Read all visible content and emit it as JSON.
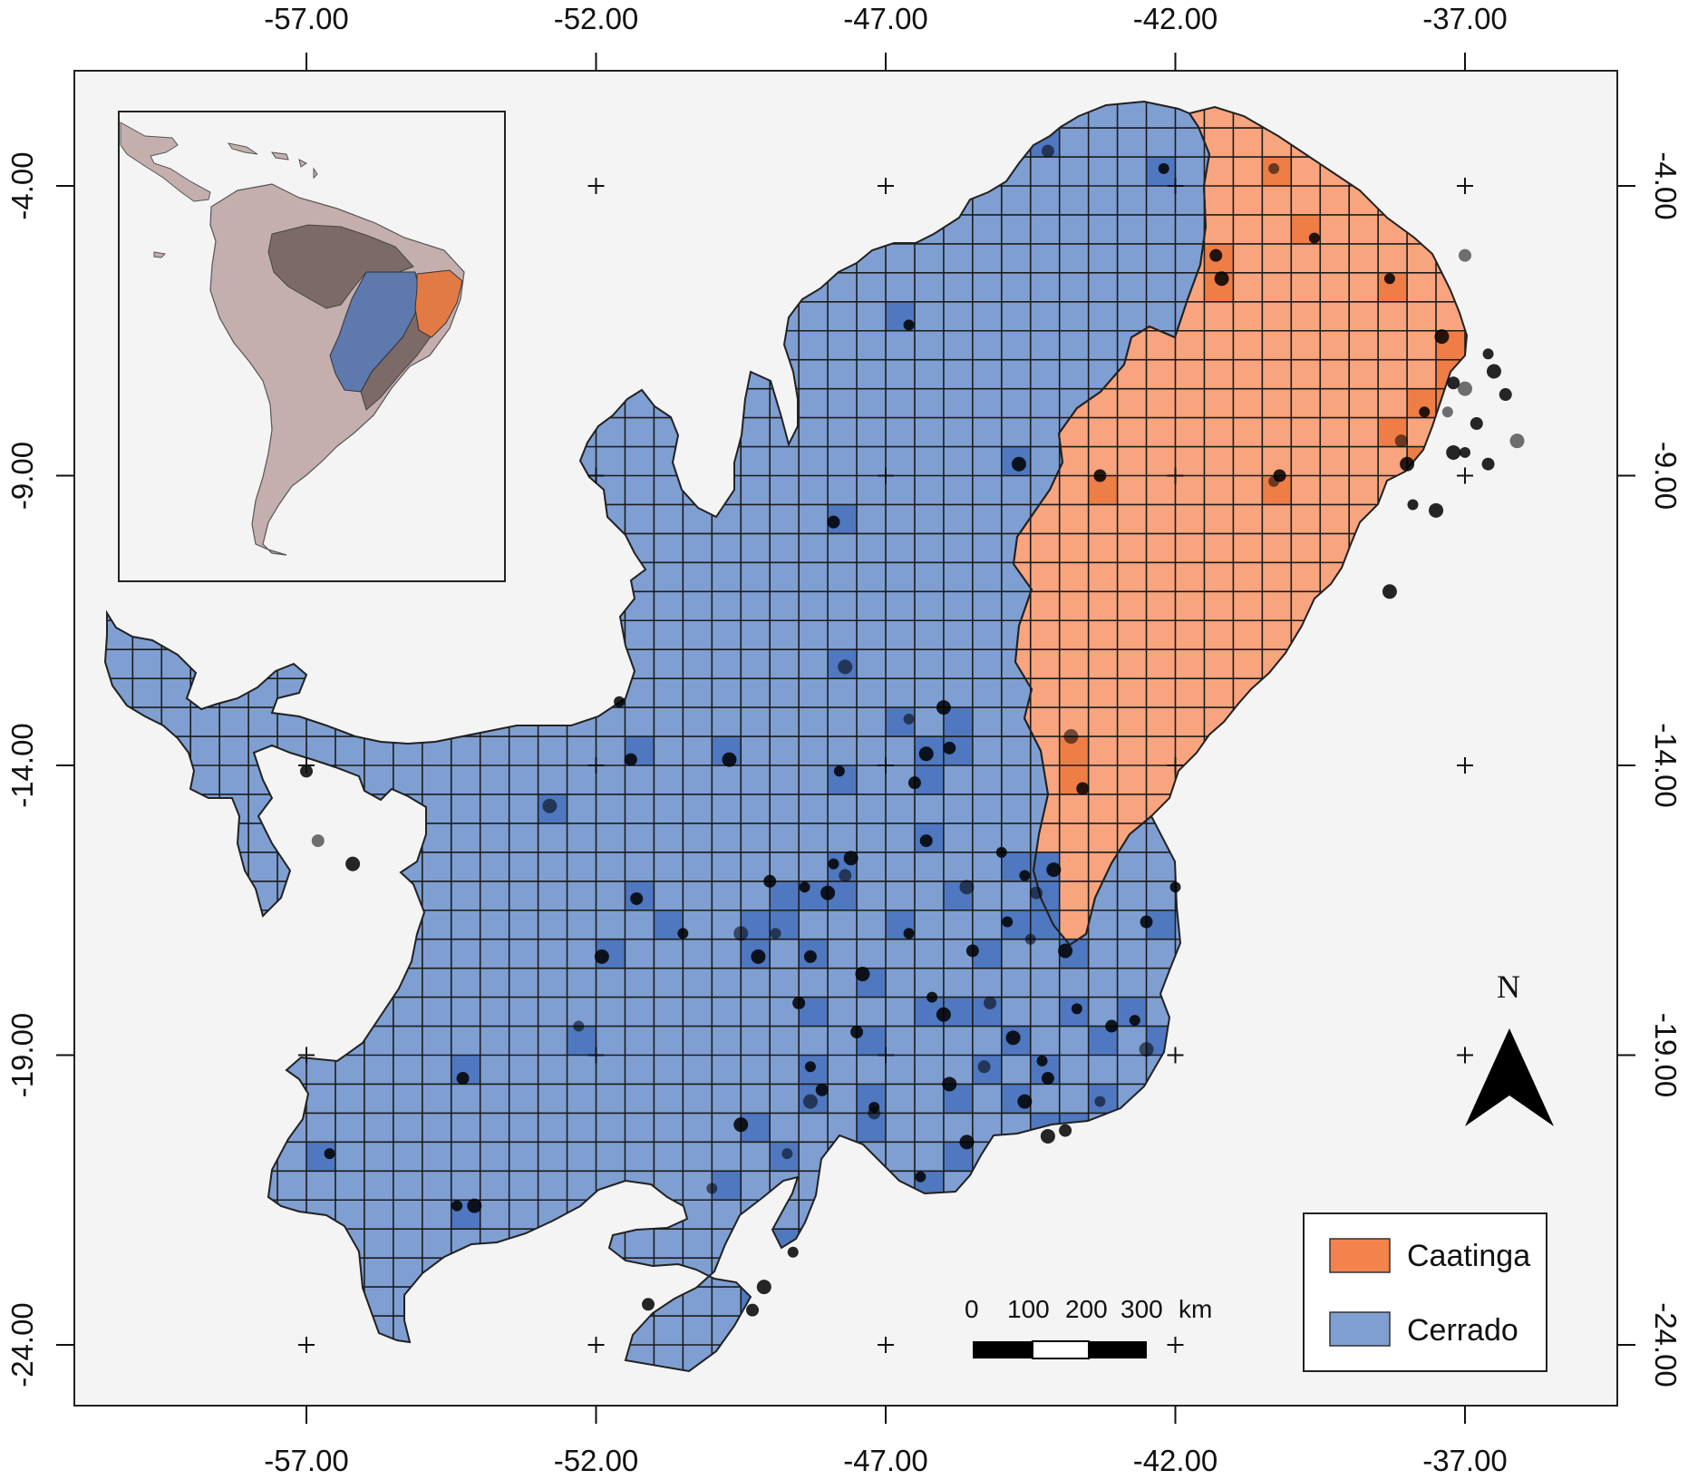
{
  "colors": {
    "frame_bg": "#f4f4f4",
    "cerrado": "#7f9fd2",
    "cerrado_hot": "#4f78c0",
    "caatinga": "#f8a47e",
    "caatinga_hot": "#ef7e46",
    "grid_line": "#1c1c1c",
    "point": "#000000",
    "inset_land": "#c4afae",
    "inset_amazon": "#7c6a69",
    "inset_cerrado": "#5d79ae",
    "inset_caatinga": "#e27a45"
  },
  "axes": {
    "x_ticks": [
      {
        "value": -57,
        "label": "-57.00"
      },
      {
        "value": -52,
        "label": "-52.00"
      },
      {
        "value": -47,
        "label": "-47.00"
      },
      {
        "value": -42,
        "label": "-42.00"
      },
      {
        "value": -37,
        "label": "-37.00"
      }
    ],
    "y_ticks": [
      {
        "value": -4,
        "label": "-4.00"
      },
      {
        "value": -9,
        "label": "-9.00"
      },
      {
        "value": -14,
        "label": "-14.00"
      },
      {
        "value": -19,
        "label": "-19.00"
      },
      {
        "value": -24,
        "label": "-24.00"
      }
    ]
  },
  "legend": {
    "items": [
      {
        "label": "Caatinga",
        "color": "#f3824c",
        "icon": "caatinga-swatch"
      },
      {
        "label": "Cerrado",
        "color": "#7f9fd2",
        "icon": "cerrado-swatch"
      }
    ]
  },
  "scale_bar": {
    "labels": [
      "0",
      "100",
      "200",
      "300",
      "km"
    ]
  },
  "north_arrow": {
    "label": "N",
    "icon": "north-arrow-icon"
  },
  "inset": {
    "description_icon": "south-america-inset-map"
  },
  "occurrences": [
    [
      -40.3,
      -3.7
    ],
    [
      -41.3,
      -5.2
    ],
    [
      -41.2,
      -5.6
    ],
    [
      -39.6,
      -4.9
    ],
    [
      -37.0,
      -5.2
    ],
    [
      -37.4,
      -6.6
    ],
    [
      -38.3,
      -5.6
    ],
    [
      -37.2,
      -7.4
    ],
    [
      -37.0,
      -7.5
    ],
    [
      -36.6,
      -6.9
    ],
    [
      -36.3,
      -7.6
    ],
    [
      -36.5,
      -7.2
    ],
    [
      -37.3,
      -7.9
    ],
    [
      -36.8,
      -8.1
    ],
    [
      -37.2,
      -8.6
    ],
    [
      -37.7,
      -7.9
    ],
    [
      -38.1,
      -8.4
    ],
    [
      -38.0,
      -8.8
    ],
    [
      -37.0,
      -8.6
    ],
    [
      -36.6,
      -8.8
    ],
    [
      -36.1,
      -8.4
    ],
    [
      -37.9,
      -9.5
    ],
    [
      -40.2,
      -9.0
    ],
    [
      -38.3,
      -11.0
    ],
    [
      -40.3,
      -9.1
    ],
    [
      -43.3,
      -9.0
    ],
    [
      -37.5,
      -9.6
    ],
    [
      -42.2,
      -3.7
    ],
    [
      -44.2,
      -3.4
    ],
    [
      -44.7,
      -8.8
    ],
    [
      -46.6,
      -6.4
    ],
    [
      -47.9,
      -9.8
    ],
    [
      -47.7,
      -12.3
    ],
    [
      -47.8,
      -14.1
    ],
    [
      -46.5,
      -14.3
    ],
    [
      -46.3,
      -13.8
    ],
    [
      -46.6,
      -13.2
    ],
    [
      -45.9,
      -13.7
    ],
    [
      -46.0,
      -13.0
    ],
    [
      -45.0,
      -15.5
    ],
    [
      -44.4,
      -16.2
    ],
    [
      -44.1,
      -15.8
    ],
    [
      -44.6,
      -15.9
    ],
    [
      -43.6,
      -14.4
    ],
    [
      -43.8,
      -13.5
    ],
    [
      -42.0,
      -16.1
    ],
    [
      -42.5,
      -16.7
    ],
    [
      -43.9,
      -17.2
    ],
    [
      -44.5,
      -17.0
    ],
    [
      -45.5,
      -17.2
    ],
    [
      -46.0,
      -18.3
    ],
    [
      -46.2,
      -18.0
    ],
    [
      -45.2,
      -18.1
    ],
    [
      -44.8,
      -18.7
    ],
    [
      -43.7,
      -18.2
    ],
    [
      -43.1,
      -18.5
    ],
    [
      -42.5,
      -18.9
    ],
    [
      -42.7,
      -18.4
    ],
    [
      -44.2,
      -19.4
    ],
    [
      -44.6,
      -19.8
    ],
    [
      -43.3,
      -19.8
    ],
    [
      -43.9,
      -20.3
    ],
    [
      -44.2,
      -20.4
    ],
    [
      -44.3,
      -19.1
    ],
    [
      -45.3,
      -19.2
    ],
    [
      -45.9,
      -19.5
    ],
    [
      -47.2,
      -19.9
    ],
    [
      -48.1,
      -19.6
    ],
    [
      -48.3,
      -19.8
    ],
    [
      -48.3,
      -19.2
    ],
    [
      -48.5,
      -18.1
    ],
    [
      -49.2,
      -17.3
    ],
    [
      -48.9,
      -16.9
    ],
    [
      -48.3,
      -17.3
    ],
    [
      -48.0,
      -16.2
    ],
    [
      -47.9,
      -15.7
    ],
    [
      -47.7,
      -15.9
    ],
    [
      -47.6,
      -15.6
    ],
    [
      -48.4,
      -16.1
    ],
    [
      -49.0,
      -16.0
    ],
    [
      -49.5,
      -16.9
    ],
    [
      -50.5,
      -16.9
    ],
    [
      -51.3,
      -16.3
    ],
    [
      -51.9,
      -17.3
    ],
    [
      -52.3,
      -18.5
    ],
    [
      -54.3,
      -19.4
    ],
    [
      -54.1,
      -21.6
    ],
    [
      -54.4,
      -21.6
    ],
    [
      -56.8,
      -15.3
    ],
    [
      -56.2,
      -15.7
    ],
    [
      -56.6,
      -20.7
    ],
    [
      -57.0,
      -14.1
    ],
    [
      -52.8,
      -14.7
    ],
    [
      -51.6,
      -12.9
    ],
    [
      -51.4,
      -13.9
    ],
    [
      -49.7,
      -13.9
    ],
    [
      -50.0,
      -21.3
    ],
    [
      -49.3,
      -23.4
    ],
    [
      -49.1,
      -23.0
    ],
    [
      -48.6,
      -22.4
    ],
    [
      -47.2,
      -20.0
    ],
    [
      -47.4,
      -17.6
    ],
    [
      -46.6,
      -16.9
    ],
    [
      -46.3,
      -15.3
    ],
    [
      -45.6,
      -16.1
    ],
    [
      -44.9,
      -16.7
    ],
    [
      -47.5,
      -18.6
    ],
    [
      -49.5,
      -20.2
    ],
    [
      -48.7,
      -20.7
    ],
    [
      -51.1,
      -23.3
    ],
    [
      -45.6,
      -20.5
    ],
    [
      -46.4,
      -21.1
    ]
  ]
}
